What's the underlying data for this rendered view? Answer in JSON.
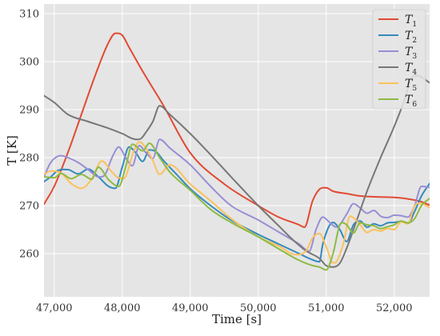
{
  "chart_data": {
    "type": "line",
    "xlabel": "Time [s]",
    "ylabel": "T [K]",
    "xlim": [
      46850,
      52520
    ],
    "ylim": [
      251,
      312
    ],
    "xticks": [
      47000,
      48000,
      49000,
      50000,
      51000,
      52000
    ],
    "xtick_labels": [
      "47,000",
      "48,000",
      "49,000",
      "50,000",
      "51,000",
      "52,000"
    ],
    "yticks": [
      260,
      270,
      280,
      290,
      300,
      310
    ],
    "ytick_labels": [
      "260",
      "270",
      "280",
      "290",
      "300",
      "310"
    ],
    "grid": true,
    "legend_position": "top-right",
    "series": [
      {
        "name": "T",
        "subscript": "1",
        "color": "#E24A33",
        "x": [
          46850,
          47000,
          47200,
          47400,
          47600,
          47800,
          47900,
          48000,
          48100,
          48300,
          48600,
          49000,
          49500,
          50000,
          50300,
          50600,
          50680,
          50800,
          50900,
          51000,
          51100,
          51300,
          51500,
          51800,
          52000,
          52200,
          52400,
          52520
        ],
        "y": [
          270.3,
          274,
          281,
          289,
          297,
          304,
          305.9,
          305.5,
          303,
          298,
          291,
          281,
          274.5,
          270,
          267.6,
          266,
          265.5,
          271,
          273.4,
          273.7,
          273,
          272.5,
          272,
          271.8,
          271.7,
          271.4,
          270.8,
          270.1
        ]
      },
      {
        "name": "T",
        "subscript": "2",
        "color": "#348ABD",
        "x": [
          46850,
          46950,
          47050,
          47200,
          47350,
          47500,
          47650,
          47800,
          47900,
          48000,
          48100,
          48200,
          48300,
          48400,
          48500,
          48600,
          48800,
          49000,
          49300,
          49600,
          50000,
          50300,
          50600,
          50800,
          50900,
          50950,
          51100,
          51200,
          51300,
          51400,
          51500,
          51600,
          51700,
          51800,
          51900,
          52000,
          52100,
          52200,
          52300,
          52400,
          52520
        ],
        "y": [
          275,
          276,
          277.3,
          277.5,
          276.6,
          277.6,
          276,
          274,
          273.6,
          278,
          282.2,
          281,
          279.2,
          281.6,
          281.2,
          279.5,
          276.5,
          273.5,
          270,
          267,
          264,
          262,
          260,
          258.7,
          258.3,
          262,
          266.5,
          265,
          262.5,
          266,
          266.8,
          265.5,
          266.2,
          265.8,
          266.4,
          266.5,
          266.7,
          266.3,
          268.8,
          272,
          274.6
        ]
      },
      {
        "name": "T",
        "subscript": "3",
        "color": "#988ED5",
        "x": [
          46850,
          46950,
          47100,
          47200,
          47350,
          47500,
          47650,
          47750,
          47850,
          47950,
          48050,
          48150,
          48250,
          48350,
          48450,
          48550,
          48700,
          49000,
          49300,
          49600,
          50000,
          50300,
          50600,
          50750,
          50850,
          50950,
          51050,
          51150,
          51300,
          51400,
          51500,
          51600,
          51700,
          51800,
          51900,
          52000,
          52100,
          52200,
          52300,
          52400,
          52520
        ],
        "y": [
          276,
          279,
          280.4,
          280,
          279,
          277.5,
          276,
          276.5,
          280,
          282.2,
          280,
          278.3,
          282.5,
          281,
          279.8,
          283.8,
          282,
          278.5,
          274,
          270,
          267,
          264.5,
          262,
          260.5,
          265,
          267.6,
          266.5,
          265.5,
          268.2,
          270.4,
          269.5,
          268.4,
          269,
          267.8,
          267.5,
          268,
          267.9,
          267.6,
          270,
          274,
          273.8
        ]
      },
      {
        "name": "T",
        "subscript": "4",
        "color": "#777777",
        "x": [
          46850,
          47000,
          47200,
          47500,
          47800,
          48000,
          48200,
          48280,
          48350,
          48450,
          48550,
          48700,
          49000,
          49300,
          49600,
          50000,
          50300,
          50500,
          50700,
          50900,
          51000,
          51100,
          51200,
          51300,
          51450,
          51600,
          51800,
          52000,
          52150,
          52250,
          52350,
          52520
        ],
        "y": [
          292.9,
          291.5,
          289,
          287.5,
          286.1,
          285,
          283.8,
          284,
          285.3,
          287.5,
          290.8,
          289,
          285,
          280.6,
          276,
          270,
          265.8,
          263,
          260.6,
          259,
          257.5,
          257.2,
          258,
          261.1,
          267,
          273,
          280,
          286.5,
          292,
          296.5,
          297,
          295.6
        ]
      },
      {
        "name": "T",
        "subscript": "5",
        "color": "#FBC15E",
        "x": [
          46850,
          46950,
          47100,
          47250,
          47400,
          47550,
          47700,
          47850,
          47950,
          48050,
          48150,
          48250,
          48350,
          48450,
          48550,
          48700,
          49000,
          49300,
          49600,
          50000,
          50300,
          50550,
          50700,
          50800,
          50900,
          51000,
          51100,
          51150,
          51250,
          51350,
          51500,
          51600,
          51700,
          51800,
          51900,
          52000,
          52100,
          52200,
          52300,
          52400,
          52520
        ],
        "y": [
          276.5,
          277.2,
          276.8,
          274.6,
          273.6,
          275.5,
          279.3,
          277,
          275.8,
          276,
          280.5,
          283.3,
          282,
          279.4,
          276.5,
          278.5,
          274.5,
          271,
          267.3,
          263.5,
          261.6,
          259.8,
          260.5,
          263.3,
          264.2,
          261.4,
          258.1,
          258.3,
          262,
          267.8,
          266,
          264.4,
          265,
          264.7,
          265.2,
          265,
          266.6,
          266.2,
          270,
          270.4,
          269.6
        ]
      },
      {
        "name": "T",
        "subscript": "6",
        "color": "#8EBA42",
        "x": [
          46850,
          47000,
          47100,
          47250,
          47400,
          47550,
          47650,
          47800,
          47950,
          48050,
          48150,
          48300,
          48400,
          48550,
          48700,
          49000,
          49300,
          49600,
          50000,
          50300,
          50600,
          50800,
          50900,
          51000,
          51100,
          51200,
          51250,
          51300,
          51400,
          51500,
          51600,
          51700,
          51800,
          51900,
          52000,
          52100,
          52200,
          52300,
          52400,
          52520
        ],
        "y": [
          276,
          275.8,
          276.7,
          275.6,
          276.5,
          275.5,
          278,
          275.4,
          274,
          278,
          282.8,
          281.4,
          283,
          280,
          277,
          273.2,
          269.2,
          266.5,
          263.5,
          261,
          258.6,
          257.5,
          257.2,
          256.6,
          260,
          266,
          266.4,
          266,
          264.3,
          266.4,
          266,
          265.8,
          265.2,
          265.6,
          266,
          266.8,
          266.4,
          267.3,
          270,
          271.5
        ]
      }
    ]
  }
}
